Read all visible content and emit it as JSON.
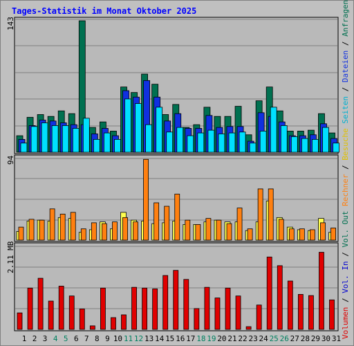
{
  "chart_data": [
    {
      "type": "bar",
      "title": "Tages-Statistik im Monat Oktober 2025",
      "ymax_label": "143",
      "categories": [
        "1",
        "2",
        "3",
        "4",
        "5",
        "6",
        "7",
        "8",
        "9",
        "10",
        "11",
        "12",
        "13",
        "14",
        "15",
        "16",
        "17",
        "18",
        "19",
        "20",
        "21",
        "22",
        "23",
        "24",
        "25",
        "26",
        "27",
        "28",
        "29",
        "30",
        "31"
      ],
      "weekend_days": [
        "4",
        "5",
        "11",
        "12",
        "18",
        "19",
        "25",
        "26"
      ],
      "ylim": [
        0,
        143
      ],
      "series": [
        {
          "name": "Anfragen",
          "color": "#007050",
          "values": [
            18,
            38,
            41,
            39,
            45,
            42,
            143,
            27,
            33,
            23,
            71,
            65,
            85,
            74,
            41,
            52,
            27,
            30,
            49,
            39,
            39,
            50,
            19,
            56,
            71,
            45,
            23,
            23,
            24,
            42,
            21
          ]
        },
        {
          "name": "Dateien",
          "color": "#1030e0",
          "values": [
            14,
            29,
            35,
            34,
            32,
            30,
            30,
            20,
            26,
            18,
            67,
            60,
            78,
            60,
            34,
            42,
            26,
            26,
            40,
            27,
            28,
            28,
            12,
            43,
            39,
            33,
            18,
            18,
            19,
            31,
            15
          ]
        },
        {
          "name": "Seiten",
          "color": "#00e0ff",
          "values": [
            10,
            28,
            32,
            29,
            29,
            26,
            37,
            14,
            21,
            14,
            58,
            53,
            30,
            49,
            22,
            27,
            18,
            21,
            24,
            20,
            21,
            22,
            10,
            23,
            49,
            29,
            17,
            15,
            14,
            27,
            10
          ]
        }
      ],
      "legend": [
        "Anfragen",
        "Dateien",
        "Seiten",
        "Besuche"
      ]
    },
    {
      "type": "bar",
      "ymax_label": "94",
      "categories": [
        "1",
        "2",
        "3",
        "4",
        "5",
        "6",
        "7",
        "8",
        "9",
        "10",
        "11",
        "12",
        "13",
        "14",
        "15",
        "16",
        "17",
        "18",
        "19",
        "20",
        "21",
        "22",
        "23",
        "24",
        "25",
        "26",
        "27",
        "28",
        "29",
        "30",
        "31"
      ],
      "ylim": [
        0,
        94
      ],
      "series": [
        {
          "name": "Besuche",
          "color": "#ffff50",
          "values": [
            10,
            22,
            23,
            22,
            26,
            25,
            9,
            12,
            21,
            13,
            32,
            23,
            22,
            19,
            20,
            22,
            18,
            18,
            21,
            23,
            21,
            21,
            11,
            21,
            45,
            26,
            15,
            12,
            11,
            25,
            9
          ]
        },
        {
          "name": "Rechner",
          "color": "#ff8010",
          "values": [
            15,
            24,
            23,
            36,
            30,
            32,
            13,
            20,
            19,
            21,
            26,
            21,
            93,
            43,
            39,
            53,
            23,
            18,
            25,
            23,
            19,
            37,
            13,
            59,
            59,
            24,
            13,
            13,
            12,
            20,
            14
          ]
        }
      ],
      "legend": [
        "Rechner"
      ]
    },
    {
      "type": "bar",
      "ymax_label": "2.11 MB",
      "categories": [
        "1",
        "2",
        "3",
        "4",
        "5",
        "6",
        "7",
        "8",
        "9",
        "10",
        "11",
        "12",
        "13",
        "14",
        "15",
        "16",
        "17",
        "18",
        "19",
        "20",
        "21",
        "22",
        "23",
        "24",
        "25",
        "26",
        "27",
        "28",
        "29",
        "30",
        "31"
      ],
      "ylim": [
        0,
        2.11
      ],
      "series": [
        {
          "name": "Volumen",
          "color": "#e00000",
          "values": [
            0.42,
            1.05,
            1.3,
            0.72,
            1.1,
            0.85,
            0.52,
            0.09,
            1.05,
            0.3,
            0.37,
            1.07,
            1.05,
            1.03,
            1.37,
            1.5,
            1.27,
            0.53,
            1.07,
            0.8,
            1.05,
            0.85,
            0.07,
            0.62,
            1.84,
            1.62,
            1.23,
            0.89,
            0.86,
            1.96,
            0.75
          ]
        }
      ],
      "legend": [
        "Volumen",
        "Vol. In",
        "Vol. Out"
      ]
    }
  ]
}
